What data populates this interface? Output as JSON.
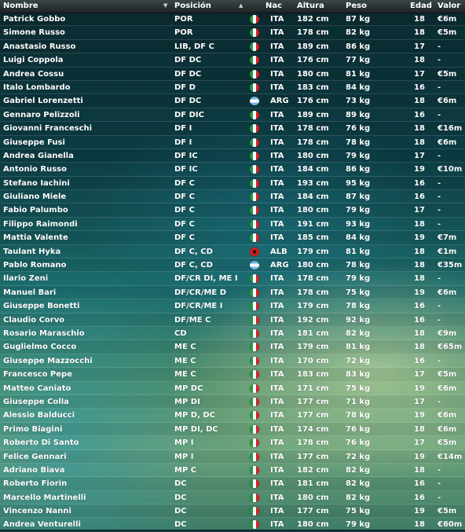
{
  "columns": {
    "name": "Nombre",
    "position": "Posición",
    "nationality": "Nac",
    "height": "Altura",
    "weight": "Peso",
    "age": "Edad",
    "value": "Valor"
  },
  "icons": {
    "name_sort": "dropdown-arrow-icon",
    "position_sort": "sort-ascending-icon"
  },
  "colors": {
    "ITA": "#1e9b3c",
    "ARG": "#74b4e6",
    "ALB": "#d21a1a"
  },
  "players": [
    {
      "name": "Patrick Gobbo",
      "position": "POR",
      "nat": "ITA",
      "height": "182 cm",
      "weight": "87 kg",
      "age": "18",
      "value": "€6m"
    },
    {
      "name": "Simone Russo",
      "position": "POR",
      "nat": "ITA",
      "height": "178 cm",
      "weight": "82 kg",
      "age": "18",
      "value": "€5m"
    },
    {
      "name": "Anastasio Russo",
      "position": "LIB, DF C",
      "nat": "ITA",
      "height": "189 cm",
      "weight": "86 kg",
      "age": "17",
      "value": "-"
    },
    {
      "name": "Luigi Coppola",
      "position": "DF DC",
      "nat": "ITA",
      "height": "176 cm",
      "weight": "77 kg",
      "age": "18",
      "value": "-"
    },
    {
      "name": "Andrea Cossu",
      "position": "DF DC",
      "nat": "ITA",
      "height": "180 cm",
      "weight": "81 kg",
      "age": "17",
      "value": "€5m"
    },
    {
      "name": "Italo Lombardo",
      "position": "DF D",
      "nat": "ITA",
      "height": "183 cm",
      "weight": "84 kg",
      "age": "16",
      "value": "-"
    },
    {
      "name": "Gabriel Lorenzetti",
      "position": "DF DC",
      "nat": "ARG",
      "height": "176 cm",
      "weight": "73 kg",
      "age": "18",
      "value": "€6m"
    },
    {
      "name": "Gennaro Pelizzoli",
      "position": "DF DIC",
      "nat": "ITA",
      "height": "189 cm",
      "weight": "89 kg",
      "age": "16",
      "value": "-"
    },
    {
      "name": "Giovanni Franceschi",
      "position": "DF I",
      "nat": "ITA",
      "height": "178 cm",
      "weight": "76 kg",
      "age": "18",
      "value": "€16m"
    },
    {
      "name": "Giuseppe Fusi",
      "position": "DF I",
      "nat": "ITA",
      "height": "178 cm",
      "weight": "78 kg",
      "age": "18",
      "value": "€6m"
    },
    {
      "name": "Andrea Gianella",
      "position": "DF IC",
      "nat": "ITA",
      "height": "180 cm",
      "weight": "79 kg",
      "age": "17",
      "value": "-"
    },
    {
      "name": "Antonio Russo",
      "position": "DF IC",
      "nat": "ITA",
      "height": "184 cm",
      "weight": "86 kg",
      "age": "19",
      "value": "€10m"
    },
    {
      "name": "Stefano Iachini",
      "position": "DF C",
      "nat": "ITA",
      "height": "193 cm",
      "weight": "95 kg",
      "age": "16",
      "value": "-"
    },
    {
      "name": "Giuliano Miele",
      "position": "DF C",
      "nat": "ITA",
      "height": "184 cm",
      "weight": "87 kg",
      "age": "16",
      "value": "-"
    },
    {
      "name": "Fabio Palumbo",
      "position": "DF C",
      "nat": "ITA",
      "height": "180 cm",
      "weight": "79 kg",
      "age": "17",
      "value": "-"
    },
    {
      "name": "Filippo Raimondi",
      "position": "DF C",
      "nat": "ITA",
      "height": "191 cm",
      "weight": "93 kg",
      "age": "18",
      "value": "-"
    },
    {
      "name": "Mattia Valente",
      "position": "DF C",
      "nat": "ITA",
      "height": "185 cm",
      "weight": "84 kg",
      "age": "19",
      "value": "€7m"
    },
    {
      "name": "Taulant Hyka",
      "position": "DF C, CD",
      "nat": "ALB",
      "height": "179 cm",
      "weight": "81 kg",
      "age": "18",
      "value": "€1m"
    },
    {
      "name": "Pablo Romano",
      "position": "DF C, CD",
      "nat": "ARG",
      "height": "180 cm",
      "weight": "78 kg",
      "age": "18",
      "value": "€35m"
    },
    {
      "name": "Ilario Zeni",
      "position": "DF/CR DI, ME I",
      "nat": "ITA",
      "height": "178 cm",
      "weight": "79 kg",
      "age": "18",
      "value": "-"
    },
    {
      "name": "Manuel Bari",
      "position": "DF/CR/ME D",
      "nat": "ITA",
      "height": "178 cm",
      "weight": "75 kg",
      "age": "19",
      "value": "€6m"
    },
    {
      "name": "Giuseppe Bonetti",
      "position": "DF/CR/ME I",
      "nat": "ITA",
      "height": "179 cm",
      "weight": "78 kg",
      "age": "16",
      "value": "-"
    },
    {
      "name": "Claudio Corvo",
      "position": "DF/ME C",
      "nat": "ITA",
      "height": "192 cm",
      "weight": "92 kg",
      "age": "16",
      "value": "-"
    },
    {
      "name": "Rosario Maraschio",
      "position": "CD",
      "nat": "ITA",
      "height": "181 cm",
      "weight": "82 kg",
      "age": "18",
      "value": "€9m"
    },
    {
      "name": "Guglielmo Cocco",
      "position": "ME C",
      "nat": "ITA",
      "height": "179 cm",
      "weight": "81 kg",
      "age": "18",
      "value": "€65m"
    },
    {
      "name": "Giuseppe Mazzocchi",
      "position": "ME C",
      "nat": "ITA",
      "height": "170 cm",
      "weight": "72 kg",
      "age": "16",
      "value": "-"
    },
    {
      "name": "Francesco Pepe",
      "position": "ME C",
      "nat": "ITA",
      "height": "183 cm",
      "weight": "83 kg",
      "age": "17",
      "value": "€5m"
    },
    {
      "name": "Matteo Caniato",
      "position": "MP DC",
      "nat": "ITA",
      "height": "171 cm",
      "weight": "75 kg",
      "age": "19",
      "value": "€6m"
    },
    {
      "name": "Giuseppe Colla",
      "position": "MP DI",
      "nat": "ITA",
      "height": "177 cm",
      "weight": "71 kg",
      "age": "17",
      "value": "-"
    },
    {
      "name": "Alessio Balducci",
      "position": "MP D, DC",
      "nat": "ITA",
      "height": "177 cm",
      "weight": "78 kg",
      "age": "19",
      "value": "€6m"
    },
    {
      "name": "Primo Biagini",
      "position": "MP DI, DC",
      "nat": "ITA",
      "height": "174 cm",
      "weight": "76 kg",
      "age": "18",
      "value": "€6m"
    },
    {
      "name": "Roberto Di Santo",
      "position": "MP I",
      "nat": "ITA",
      "height": "178 cm",
      "weight": "76 kg",
      "age": "17",
      "value": "€5m"
    },
    {
      "name": "Felice Gennari",
      "position": "MP I",
      "nat": "ITA",
      "height": "177 cm",
      "weight": "72 kg",
      "age": "19",
      "value": "€14m"
    },
    {
      "name": "Adriano Biava",
      "position": "MP C",
      "nat": "ITA",
      "height": "182 cm",
      "weight": "82 kg",
      "age": "18",
      "value": "-"
    },
    {
      "name": "Roberto Fiorin",
      "position": "DC",
      "nat": "ITA",
      "height": "181 cm",
      "weight": "82 kg",
      "age": "16",
      "value": "-"
    },
    {
      "name": "Marcello Martinelli",
      "position": "DC",
      "nat": "ITA",
      "height": "180 cm",
      "weight": "82 kg",
      "age": "16",
      "value": "-"
    },
    {
      "name": "Vincenzo Nanni",
      "position": "DC",
      "nat": "ITA",
      "height": "177 cm",
      "weight": "75 kg",
      "age": "19",
      "value": "€5m"
    },
    {
      "name": "Andrea Venturelli",
      "position": "DC",
      "nat": "ITA",
      "height": "180 cm",
      "weight": "79 kg",
      "age": "18",
      "value": "€60m"
    }
  ]
}
